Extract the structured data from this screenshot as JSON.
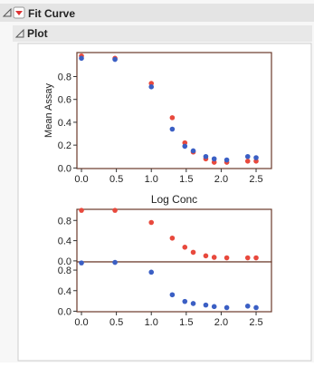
{
  "outline": {
    "title": "Fit Curve",
    "section": "Plot"
  },
  "chart_data": [
    {
      "type": "scatter",
      "xlabel": "Log Conc",
      "ylabel": "Mean Assay",
      "x": [
        0.0,
        0.48,
        1.0,
        1.3,
        1.48,
        1.6,
        1.78,
        1.9,
        2.08,
        2.38,
        2.5
      ],
      "series": [
        {
          "color": "#e8493d",
          "values": [
            0.98,
            0.96,
            0.74,
            0.44,
            0.22,
            0.14,
            0.08,
            0.05,
            0.05,
            0.06,
            0.06
          ]
        },
        {
          "color": "#3b5fc4",
          "values": [
            0.96,
            0.95,
            0.71,
            0.34,
            0.19,
            0.15,
            0.1,
            0.08,
            0.07,
            0.1,
            0.09
          ]
        }
      ],
      "xlim": [
        -0.065,
        2.72
      ],
      "ylim": [
        -0.005,
        1.01
      ],
      "xticks": [
        {
          "value": 0,
          "label": "0.0"
        },
        0.5,
        {
          "value": 1,
          "label": "1.0"
        },
        1.5,
        {
          "value": 2,
          "label": "2.0"
        },
        2.5
      ],
      "yticks": [
        {
          "value": 0,
          "label": "0.0"
        },
        0.2,
        0.4,
        0.6,
        0.8
      ]
    },
    {
      "type": "scatter",
      "x": [
        0.0,
        0.48,
        1.0,
        1.3,
        1.48,
        1.6,
        1.78,
        1.9,
        2.08,
        2.38,
        2.5
      ],
      "series": [
        {
          "color": "#e8493d",
          "values": [
            1.0,
            1.0,
            0.76,
            0.45,
            0.27,
            0.17,
            0.1,
            0.07,
            0.06,
            0.06,
            0.06
          ]
        }
      ],
      "xlim": [
        -0.065,
        2.72
      ],
      "ylim": [
        -0.02,
        1.02
      ],
      "yticks": [
        {
          "value": 0,
          "label": "0.0"
        },
        0.4,
        0.8
      ]
    },
    {
      "type": "scatter",
      "x": [
        0.0,
        0.48,
        1.0,
        1.3,
        1.48,
        1.6,
        1.78,
        1.9,
        2.08,
        2.38,
        2.5
      ],
      "series": [
        {
          "color": "#3b5fc4",
          "values": [
            0.94,
            0.95,
            0.76,
            0.32,
            0.19,
            0.15,
            0.12,
            0.09,
            0.07,
            0.1,
            0.07
          ]
        }
      ],
      "xlim": [
        -0.065,
        2.72
      ],
      "ylim": [
        -0.01,
        0.96
      ],
      "xticks": [
        {
          "value": 0,
          "label": "0.0"
        },
        0.5,
        {
          "value": 1,
          "label": "1.0"
        },
        1.5,
        {
          "value": 2,
          "label": "2.0"
        },
        2.5
      ],
      "yticks": [
        {
          "value": 0,
          "label": "0.0"
        },
        0.4,
        0.8
      ]
    }
  ]
}
